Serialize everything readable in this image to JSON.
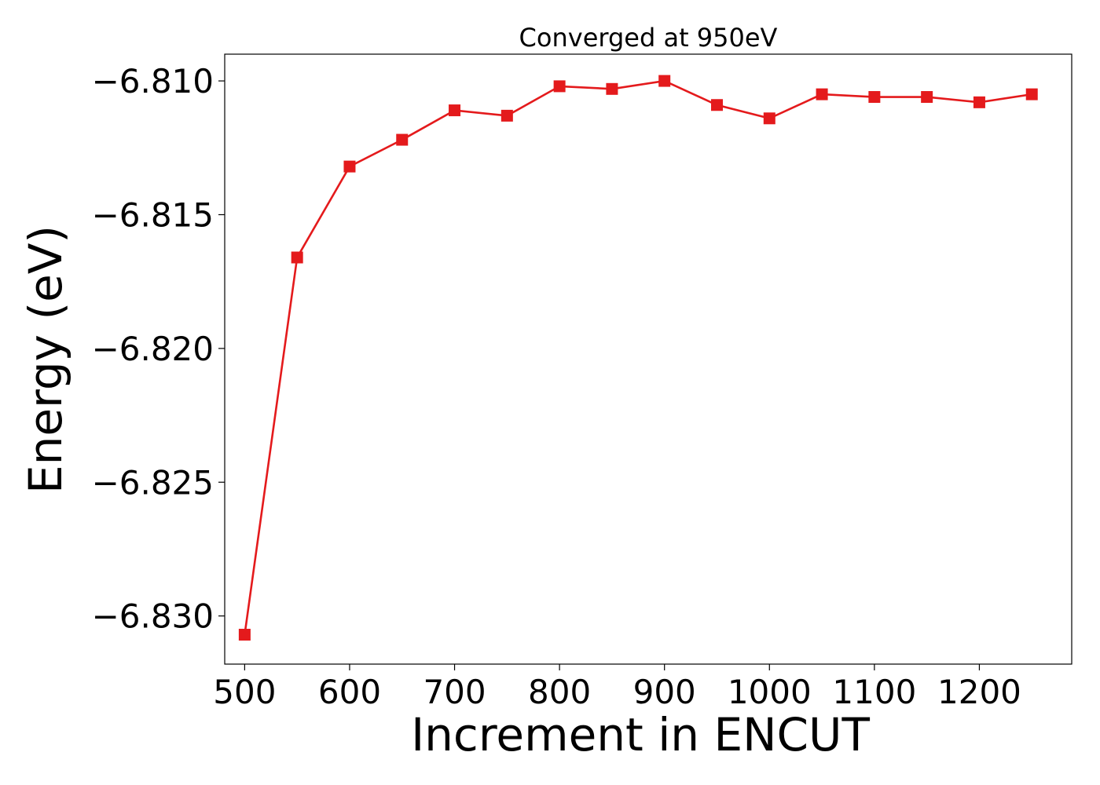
{
  "chart_data": {
    "type": "line",
    "title": "Converged at 950eV",
    "xlabel": "Increment in ENCUT",
    "ylabel": "Energy (eV)",
    "xlim": [
      481,
      1288
    ],
    "ylim": [
      -6.8318,
      -6.809
    ],
    "xticks": [
      500,
      600,
      700,
      800,
      900,
      1000,
      1100,
      1200
    ],
    "xtick_labels": [
      "500",
      "600",
      "700",
      "800",
      "900",
      "1000",
      "1100",
      "1200"
    ],
    "yticks": [
      -6.81,
      -6.815,
      -6.82,
      -6.825,
      -6.83
    ],
    "ytick_labels": [
      "−6.810",
      "−6.815",
      "−6.820",
      "−6.825",
      "−6.830"
    ],
    "grid": false,
    "color": "#e41a1c",
    "marker": "square",
    "series": [
      {
        "x": [
          500,
          550,
          600,
          650,
          700,
          750,
          800,
          850,
          900,
          950,
          1000,
          1050,
          1100,
          1150,
          1200,
          1250
        ],
        "values": [
          -6.8307,
          -6.8166,
          -6.8132,
          -6.8122,
          -6.8111,
          -6.8113,
          -6.8102,
          -6.8103,
          -6.81,
          -6.8109,
          -6.8114,
          -6.8105,
          -6.8106,
          -6.8106,
          -6.8108,
          -6.8105
        ]
      }
    ]
  }
}
